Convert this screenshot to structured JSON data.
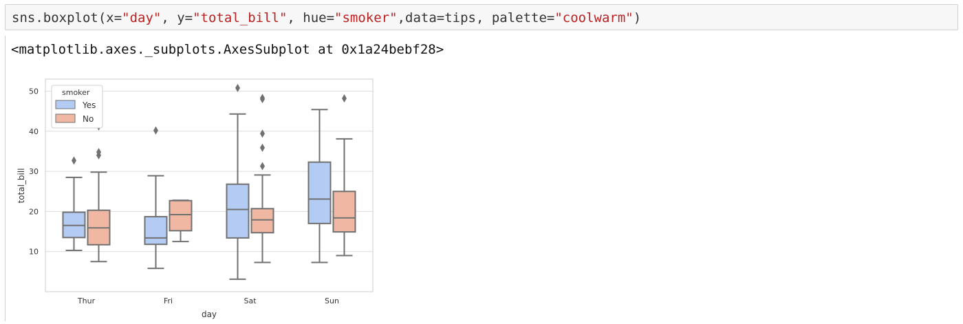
{
  "code_cell": {
    "segments": [
      {
        "text": "sns.boxplot(x=",
        "kind": "code"
      },
      {
        "text": "\"day\"",
        "kind": "string"
      },
      {
        "text": ", y=",
        "kind": "code"
      },
      {
        "text": "\"total_bill\"",
        "kind": "string"
      },
      {
        "text": ", hue=",
        "kind": "code"
      },
      {
        "text": "\"smoker\"",
        "kind": "string"
      },
      {
        "text": ",data=tips, palette=",
        "kind": "code"
      },
      {
        "text": "\"coolwarm\"",
        "kind": "string"
      },
      {
        "text": ")",
        "kind": "code"
      }
    ]
  },
  "output": {
    "repr_text": "<matplotlib.axes._subplots.AxesSubplot at 0x1a24bebf28>"
  },
  "chart_data": {
    "type": "box",
    "xlabel": "day",
    "ylabel": "total_bill",
    "categories": [
      "Thur",
      "Fri",
      "Sat",
      "Sun"
    ],
    "ylim": [
      0,
      53
    ],
    "yticks": [
      10,
      20,
      30,
      40,
      50
    ],
    "grid": true,
    "legend": {
      "title": "smoker",
      "placement": "top-left",
      "entries": [
        "Yes",
        "No"
      ]
    },
    "colors": {
      "Yes": "#b4cbf4",
      "No": "#f0b8a2",
      "edge": "#707070",
      "grid": "#dcdcdc",
      "code_string": "#ba2121"
    },
    "series": [
      {
        "name": "Yes",
        "boxes": [
          {
            "whislo": 10.3,
            "q1": 13.5,
            "median": 16.5,
            "q3": 19.8,
            "whishi": 28.5,
            "fliers": [
              32.7
            ]
          },
          {
            "whislo": 5.8,
            "q1": 11.8,
            "median": 13.4,
            "q3": 18.7,
            "whishi": 28.9,
            "fliers": [
              40.2
            ]
          },
          {
            "whislo": 3.1,
            "q1": 13.4,
            "median": 20.5,
            "q3": 26.8,
            "whishi": 44.3,
            "fliers": [
              50.8
            ]
          },
          {
            "whislo": 7.3,
            "q1": 17.0,
            "median": 23.1,
            "q3": 32.3,
            "whishi": 45.4,
            "fliers": []
          }
        ]
      },
      {
        "name": "No",
        "boxes": [
          {
            "whislo": 7.5,
            "q1": 11.7,
            "median": 15.9,
            "q3": 20.3,
            "whishi": 29.8,
            "fliers": [
              34.0,
              34.8,
              41.2
            ]
          },
          {
            "whislo": 12.5,
            "q1": 15.2,
            "median": 19.2,
            "q3": 22.7,
            "whishi": 22.8,
            "fliers": []
          },
          {
            "whislo": 7.3,
            "q1": 14.7,
            "median": 17.9,
            "q3": 20.7,
            "whishi": 29.1,
            "fliers": [
              31.3,
              35.9,
              39.4,
              48.0,
              48.3
            ]
          },
          {
            "whislo": 9.0,
            "q1": 14.9,
            "median": 18.4,
            "q3": 25.0,
            "whishi": 38.1,
            "fliers": [
              48.2
            ]
          }
        ]
      }
    ]
  }
}
